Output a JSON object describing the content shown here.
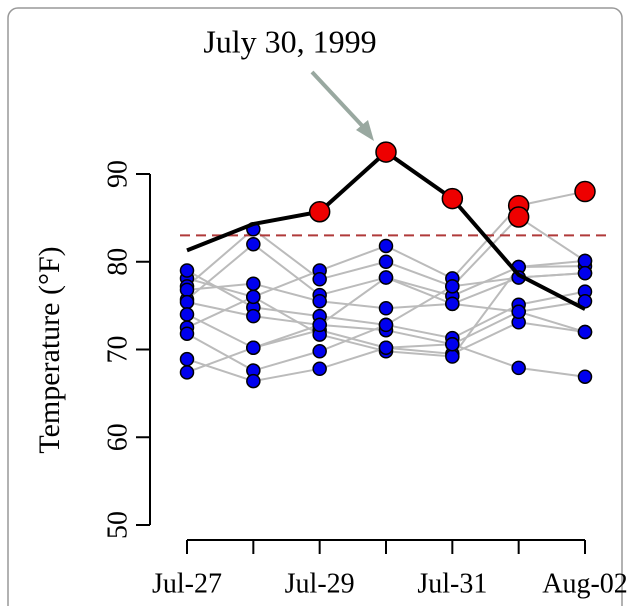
{
  "chart_data": {
    "type": "line",
    "annotation": "July 30, 1999",
    "y_label": "Temperature (°F)",
    "categories": [
      "Jul-27",
      null,
      "Jul-29",
      null,
      "Jul-31",
      null,
      "Aug-02"
    ],
    "ylim": [
      50,
      90
    ],
    "yticks": [
      50,
      60,
      70,
      80,
      90
    ],
    "threshold": 83,
    "threshold_color": "#b03a3a",
    "gray_color": "#bbbbbb",
    "point_color": "#0000ee",
    "highlight_color": "#ee0000",
    "main_color": "#000000",
    "gray_series": [
      {
        "values": [
          78.1,
          76.0,
          79.0,
          81.8,
          78.1,
          86.4,
          88.0
        ]
      },
      {
        "values": [
          77.2,
          83.7,
          78.0,
          80.0,
          77.2,
          85.1,
          80.1
        ]
      },
      {
        "values": [
          75.7,
          82.0,
          76.2,
          78.2,
          76.1,
          79.4,
          79.5
        ]
      },
      {
        "values": [
          76.8,
          77.5,
          75.5,
          74.7,
          75.2,
          78.2,
          78.7
        ]
      },
      {
        "values": [
          79.0,
          74.8,
          73.8,
          72.8,
          71.3,
          75.1,
          76.6
        ]
      },
      {
        "values": [
          75.4,
          73.8,
          72.8,
          72.2,
          70.6,
          74.3,
          75.5
        ]
      },
      {
        "values": [
          74.0,
          70.2,
          72.2,
          70.2,
          69.5,
          73.1,
          72.0
        ]
      },
      {
        "values": [
          72.5,
          76.0,
          71.7,
          69.8,
          69.2,
          79.4,
          80.1
        ]
      },
      {
        "values": [
          71.8,
          67.6,
          69.8,
          72.8,
          77.2,
          78.2,
          78.7
        ]
      },
      {
        "values": [
          68.9,
          66.4,
          67.8,
          70.2,
          70.6,
          67.9,
          66.9
        ]
      },
      {
        "values": [
          67.4,
          70.2,
          72.8,
          78.2,
          75.2,
          74.3,
          72.0
        ]
      }
    ],
    "main_series": {
      "values": [
        81.3,
        84.3,
        85.7,
        92.5,
        87.2,
        78.5,
        74.6
      ]
    },
    "highlight_series": [
      {
        "values": [
          null,
          null,
          85.7,
          92.5,
          87.2,
          86.4,
          88.0
        ]
      },
      {
        "values": [
          null,
          null,
          null,
          null,
          null,
          85.1,
          null
        ]
      }
    ]
  }
}
